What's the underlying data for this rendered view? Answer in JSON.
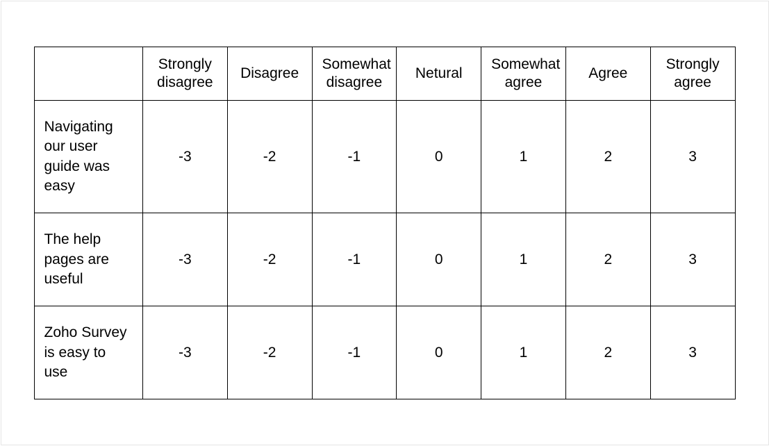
{
  "table": {
    "type": "table",
    "background_color": "#ffffff",
    "border_color": "#000000",
    "outer_frame_color": "#e5e5e5",
    "font_size": 21,
    "text_color": "#000000",
    "columns": [
      "Strongly disagree",
      "Disagree",
      "Somewhat disagree",
      "Netural",
      "Somewhat agree",
      "Agree",
      "Strongly agree"
    ],
    "rows": [
      {
        "label": "Navigating our user guide was easy",
        "values": [
          "-3",
          "-2",
          "-1",
          "0",
          "1",
          "2",
          "3"
        ]
      },
      {
        "label": "The help pages are useful",
        "values": [
          "-3",
          "-2",
          "-1",
          "0",
          "1",
          "2",
          "3"
        ]
      },
      {
        "label": "Zoho Survey is easy to use",
        "values": [
          "-3",
          "-2",
          "-1",
          "0",
          "1",
          "2",
          "3"
        ]
      }
    ],
    "col_widths_pct": {
      "row_label": 15.5,
      "value": 12.07
    }
  }
}
